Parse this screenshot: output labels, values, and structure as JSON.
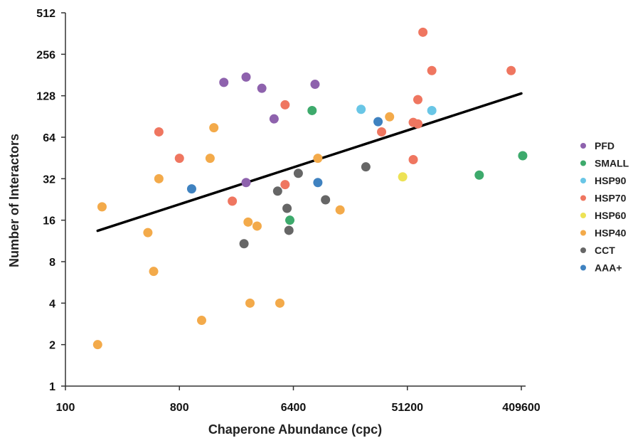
{
  "chart_data": {
    "type": "scatter",
    "title": "",
    "xlabel": "Chaperone Abundance (cpc)",
    "ylabel": "Number of Interactors",
    "x_scale": "log2",
    "y_scale": "log2",
    "xlim": [
      100,
      409600
    ],
    "ylim": [
      1,
      512
    ],
    "x_ticks": [
      100,
      800,
      6400,
      51200,
      409600
    ],
    "y_ticks": [
      1,
      2,
      4,
      8,
      16,
      32,
      64,
      128,
      256,
      512
    ],
    "grid": false,
    "legend_position": "right",
    "series": [
      {
        "name": "PFD",
        "color": "#8e62ad",
        "points": [
          [
            1800,
            160
          ],
          [
            2700,
            175
          ],
          [
            3600,
            145
          ],
          [
            4500,
            87
          ],
          [
            9500,
            155
          ],
          [
            2700,
            30
          ]
        ]
      },
      {
        "name": "SMALL",
        "color": "#3daa6c",
        "points": [
          [
            9000,
            100
          ],
          [
            6000,
            16
          ],
          [
            190000,
            34
          ],
          [
            420000,
            47
          ]
        ]
      },
      {
        "name": "HSP90",
        "color": "#69c6e6",
        "points": [
          [
            22000,
            102
          ],
          [
            80000,
            100
          ]
        ]
      },
      {
        "name": "HSP70",
        "color": "#ef7660",
        "points": [
          [
            340000,
            195
          ],
          [
            80000,
            195
          ],
          [
            68000,
            370
          ],
          [
            62000,
            120
          ],
          [
            62000,
            80
          ],
          [
            57000,
            82
          ],
          [
            57000,
            44
          ],
          [
            32000,
            70
          ],
          [
            5500,
            110
          ],
          [
            5500,
            29
          ],
          [
            2100,
            22
          ],
          [
            800,
            45
          ],
          [
            550,
            70
          ]
        ]
      },
      {
        "name": "HSP60",
        "color": "#ede255",
        "points": [
          [
            47000,
            33
          ]
        ]
      },
      {
        "name": "HSP40",
        "color": "#f3aa4a",
        "points": [
          [
            195,
            20
          ],
          [
            180,
            2
          ],
          [
            450,
            13
          ],
          [
            500,
            6.8
          ],
          [
            550,
            32
          ],
          [
            1200,
            3
          ],
          [
            1400,
            45
          ],
          [
            1500,
            75
          ],
          [
            2800,
            15.5
          ],
          [
            3300,
            14.5
          ],
          [
            2900,
            4
          ],
          [
            5000,
            4
          ],
          [
            10000,
            45
          ],
          [
            15000,
            19
          ],
          [
            37000,
            90
          ]
        ]
      },
      {
        "name": "CCT",
        "color": "#666666",
        "points": [
          [
            2600,
            10.8
          ],
          [
            4800,
            26
          ],
          [
            5700,
            19.5
          ],
          [
            5900,
            13.5
          ],
          [
            7000,
            35
          ],
          [
            11500,
            22.5
          ],
          [
            24000,
            39
          ]
        ]
      },
      {
        "name": "AAA+",
        "color": "#3f82c0",
        "points": [
          [
            1000,
            27
          ],
          [
            10000,
            30
          ],
          [
            30000,
            83
          ]
        ]
      }
    ],
    "trendline": {
      "type": "power",
      "x": [
        180,
        409600
      ],
      "y": [
        13.4,
        133
      ],
      "color": "#000000"
    }
  }
}
